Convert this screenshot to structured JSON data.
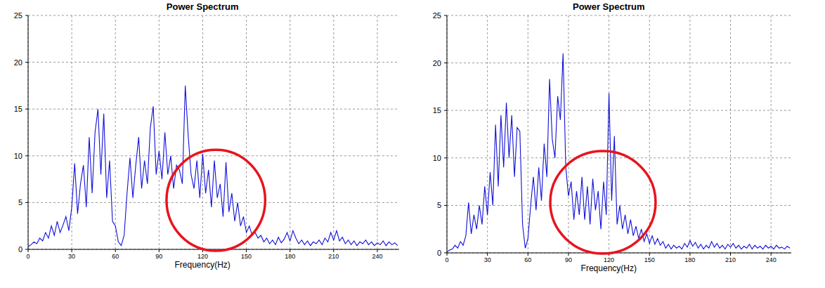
{
  "chart_data": [
    {
      "type": "line",
      "title": "Power Spectrum",
      "x_label": "Frequency(Hz)",
      "color": "#1010d8",
      "xlim": [
        0,
        255
      ],
      "ylim": [
        0,
        25
      ],
      "xticks": [
        0,
        30,
        60,
        90,
        120,
        150,
        180,
        210,
        240
      ],
      "yticks": [
        0,
        5,
        10,
        15,
        20,
        25
      ],
      "grid": true,
      "x": [
        0,
        2,
        4,
        6,
        8,
        10,
        12,
        14,
        16,
        18,
        20,
        22,
        24,
        26,
        28,
        30,
        32,
        34,
        36,
        38,
        40,
        42,
        44,
        46,
        48,
        50,
        52,
        54,
        56,
        58,
        60,
        62,
        64,
        66,
        68,
        70,
        72,
        74,
        76,
        78,
        80,
        82,
        84,
        86,
        88,
        90,
        92,
        94,
        96,
        98,
        100,
        102,
        104,
        106,
        108,
        110,
        112,
        114,
        116,
        118,
        120,
        122,
        124,
        126,
        128,
        130,
        132,
        134,
        136,
        138,
        140,
        142,
        144,
        146,
        148,
        150,
        152,
        154,
        156,
        158,
        160,
        162,
        164,
        166,
        168,
        170,
        172,
        174,
        176,
        178,
        180,
        182,
        184,
        186,
        188,
        190,
        192,
        194,
        196,
        198,
        200,
        202,
        204,
        206,
        208,
        210,
        212,
        214,
        216,
        218,
        220,
        222,
        224,
        226,
        228,
        230,
        232,
        234,
        236,
        238,
        240,
        242,
        244,
        246,
        248,
        250,
        252,
        254
      ],
      "values": [
        0.3,
        0.5,
        0.8,
        0.6,
        1.2,
        0.9,
        1.8,
        1.2,
        2.5,
        1.5,
        3.0,
        1.8,
        2.6,
        3.5,
        2.0,
        4.5,
        9.2,
        3.8,
        7.0,
        9.0,
        4.5,
        12.0,
        6.0,
        12.5,
        15.0,
        8.0,
        14.5,
        5.5,
        9.5,
        3.0,
        2.5,
        0.8,
        0.4,
        1.5,
        6.0,
        9.8,
        5.5,
        9.0,
        12.0,
        6.5,
        9.5,
        7.0,
        13.0,
        15.3,
        8.0,
        10.5,
        7.5,
        12.5,
        8.0,
        10.0,
        6.5,
        9.0,
        8.5,
        7.0,
        17.5,
        12.2,
        8.0,
        6.5,
        9.5,
        5.5,
        10.2,
        6.0,
        8.5,
        4.5,
        9.5,
        5.5,
        7.0,
        3.5,
        9.3,
        4.0,
        6.0,
        3.0,
        5.0,
        2.5,
        3.5,
        1.8,
        2.5,
        1.5,
        1.8,
        1.2,
        1.5,
        0.8,
        1.2,
        0.6,
        1.0,
        0.5,
        1.3,
        0.7,
        1.1,
        1.8,
        0.9,
        2.0,
        1.2,
        0.6,
        1.0,
        0.5,
        0.9,
        0.4,
        0.8,
        0.6,
        1.0,
        0.5,
        1.2,
        0.8,
        1.8,
        1.0,
        2.0,
        0.9,
        1.3,
        0.6,
        1.0,
        0.5,
        0.9,
        0.4,
        0.8,
        0.6,
        1.0,
        0.5,
        0.8,
        0.4,
        0.7,
        0.5,
        0.9,
        0.4,
        0.8,
        0.5,
        0.7,
        0.4
      ]
    },
    {
      "type": "line",
      "title": "Power Spectrum",
      "x_label": "Frequency(Hz)",
      "color": "#1010d8",
      "xlim": [
        0,
        255
      ],
      "ylim": [
        0,
        25
      ],
      "xticks": [
        0,
        30,
        60,
        90,
        120,
        150,
        180,
        210,
        240
      ],
      "yticks": [
        0,
        5,
        10,
        15,
        20,
        25
      ],
      "grid": true,
      "x": [
        0,
        2,
        4,
        6,
        8,
        10,
        12,
        14,
        16,
        18,
        20,
        22,
        24,
        26,
        28,
        30,
        32,
        34,
        36,
        38,
        40,
        42,
        44,
        46,
        48,
        50,
        52,
        54,
        56,
        58,
        60,
        62,
        64,
        66,
        68,
        70,
        72,
        74,
        76,
        78,
        80,
        82,
        84,
        86,
        88,
        90,
        92,
        94,
        96,
        98,
        100,
        102,
        104,
        106,
        108,
        110,
        112,
        114,
        116,
        118,
        120,
        122,
        124,
        126,
        128,
        130,
        132,
        134,
        136,
        138,
        140,
        142,
        144,
        146,
        148,
        150,
        152,
        154,
        156,
        158,
        160,
        162,
        164,
        166,
        168,
        170,
        172,
        174,
        176,
        178,
        180,
        182,
        184,
        186,
        188,
        190,
        192,
        194,
        196,
        198,
        200,
        202,
        204,
        206,
        208,
        210,
        212,
        214,
        216,
        218,
        220,
        222,
        224,
        226,
        228,
        230,
        232,
        234,
        236,
        238,
        240,
        242,
        244,
        246,
        248,
        250,
        252,
        254
      ],
      "values": [
        0.1,
        0.3,
        0.4,
        0.8,
        0.5,
        1.2,
        0.8,
        1.8,
        5.3,
        2.0,
        4.0,
        2.5,
        5.0,
        3.0,
        7.0,
        4.0,
        8.5,
        5.0,
        13.5,
        7.0,
        14.5,
        9.0,
        15.8,
        10.0,
        14.5,
        8.0,
        13.2,
        12.8,
        3.0,
        0.5,
        1.5,
        5.0,
        8.0,
        4.5,
        9.0,
        5.5,
        11.5,
        8.0,
        18.3,
        12.0,
        10.0,
        16.5,
        14.0,
        21.0,
        9.0,
        6.0,
        7.5,
        3.5,
        6.5,
        4.0,
        8.0,
        3.5,
        7.0,
        3.0,
        7.8,
        4.5,
        6.5,
        2.5,
        7.5,
        4.0,
        16.8,
        5.5,
        12.3,
        3.0,
        5.0,
        2.5,
        4.0,
        2.0,
        3.5,
        1.8,
        2.8,
        1.5,
        2.5,
        1.2,
        2.0,
        1.0,
        1.8,
        0.9,
        1.5,
        0.8,
        1.2,
        0.5,
        0.9,
        0.4,
        0.8,
        0.5,
        0.7,
        0.4,
        1.0,
        0.6,
        1.3,
        0.7,
        1.1,
        0.5,
        0.9,
        0.4,
        0.8,
        0.5,
        1.2,
        0.6,
        1.0,
        0.5,
        0.8,
        0.4,
        0.9,
        0.6,
        1.0,
        0.5,
        0.8,
        0.4,
        0.7,
        0.5,
        0.9,
        0.4,
        0.8,
        0.5,
        0.7,
        0.4,
        0.8,
        0.5,
        0.7,
        0.4,
        0.8,
        0.5,
        0.6,
        0.4,
        0.7,
        0.5
      ]
    }
  ]
}
